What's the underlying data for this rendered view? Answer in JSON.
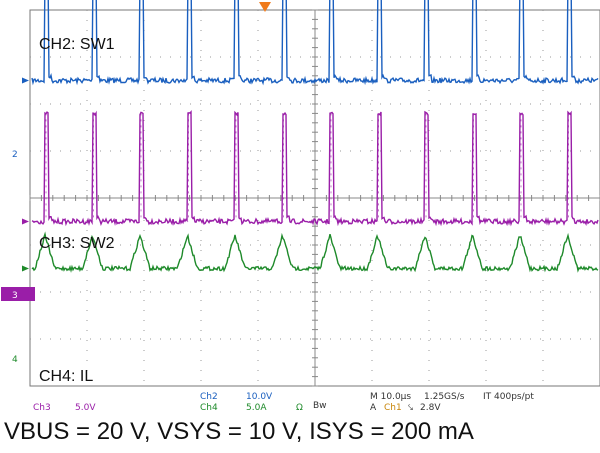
{
  "chart_data": {
    "type": "line",
    "title": "",
    "grid": true,
    "x_divisions": 10,
    "y_divisions": 8,
    "time_per_div": "10.0µs",
    "pulses_per_screen": 12,
    "channels": [
      {
        "id": "Ch2",
        "label": "CH2: SW1",
        "marker": "2",
        "color": "#1a5fbf",
        "scale": "10.0V",
        "offset_div": 1.5,
        "high_div": 2.3,
        "shape": "pulse"
      },
      {
        "id": "Ch3",
        "label": "CH3: SW2",
        "marker": "3",
        "color": "#9a1ea8",
        "scale": "5.0V",
        "offset_div": 4.5,
        "high_div": 2.3,
        "shape": "pulse"
      },
      {
        "id": "Ch4",
        "label": "CH4: IL",
        "marker": "4",
        "color": "#1e8a2a",
        "scale": "5.0A",
        "offset_div": 5.5,
        "high_div": 0.7,
        "shape": "spike"
      }
    ],
    "status": {
      "timebase": "M 10.0µs",
      "sample_rate": "1.25GS/s",
      "record": "IT 400ps/pt",
      "trigger_mode": "A",
      "trigger_source": "Ch1",
      "trigger_slope": "⤥",
      "trigger_level": "2.8V",
      "ohm": "Ω",
      "bw": "Bw"
    }
  },
  "caption": "VBUS = 20 V, VSYS = 10 V, ISYS = 200 mA",
  "trigger_marker_color": "#f07a1a"
}
